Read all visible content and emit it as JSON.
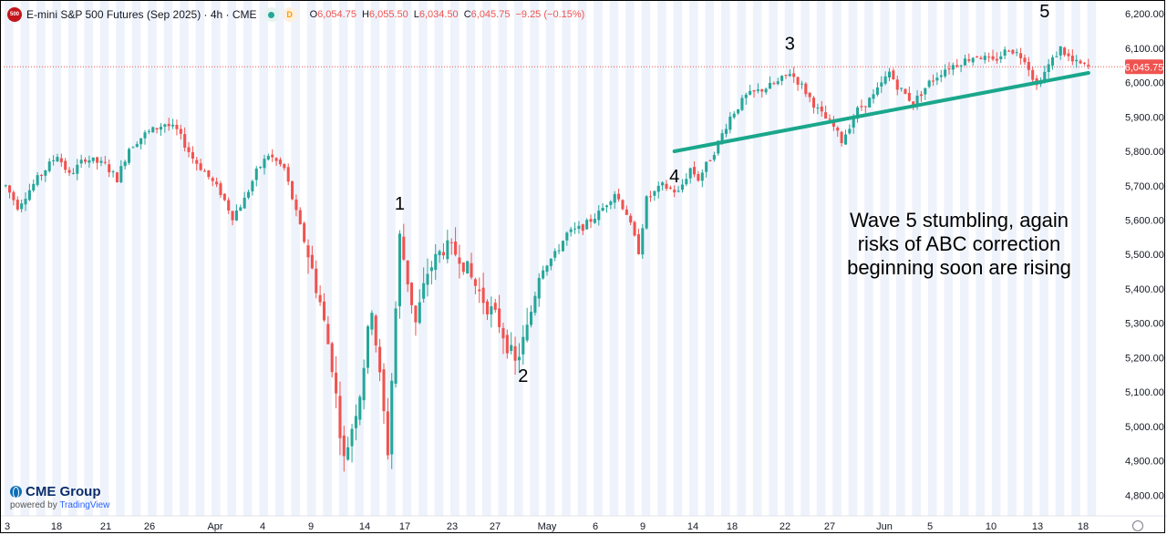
{
  "header": {
    "symbol_badge": "500",
    "title": "E-mini S&P 500 Futures (Sep 2025) · 4h · CME",
    "status_badge": "D",
    "ohlc": [
      {
        "key": "O",
        "value": "6,054.75"
      },
      {
        "key": "H",
        "value": "6,055.50"
      },
      {
        "key": "L",
        "value": "6,034.50"
      },
      {
        "key": "C",
        "value": "6,045.75"
      }
    ],
    "change": "−9.25 (−0.15%)"
  },
  "brand": {
    "name": "CME Group",
    "powered_prefix": "powered by",
    "powered_by": "TradingView"
  },
  "colors": {
    "up": "#26a69a",
    "down": "#ef5350",
    "trendline": "#1aa78c",
    "session_band": "#eef2fb",
    "price_tag": "#ef5350"
  },
  "chart_data": {
    "type": "candlestick",
    "y_ticks": [
      4800,
      4900,
      5000,
      5100,
      5200,
      5300,
      5400,
      5500,
      5600,
      5700,
      5800,
      5900,
      6000,
      6100,
      6200
    ],
    "y_tick_labels": [
      "4,800.00",
      "4,900.00",
      "5,000.00",
      "5,100.00",
      "5,200.00",
      "5,300.00",
      "5,400.00",
      "5,500.00",
      "5,600.00",
      "5,700.00",
      "5,800.00",
      "5,900.00",
      "6,000.00",
      "6,100.00",
      "6,200.00"
    ],
    "ylim": [
      4740,
      6240
    ],
    "x_tick_labels": [
      "3",
      "18",
      "21",
      "26",
      "Apr",
      "4",
      "9",
      "14",
      "17",
      "23",
      "27",
      "May",
      "6",
      "9",
      "14",
      "18",
      "22",
      "27",
      "Jun",
      "5",
      "10",
      "13",
      "18"
    ],
    "last_price": 6045.75,
    "last_price_label": "6,045.75",
    "path": [
      [
        0,
        5700
      ],
      [
        3,
        5640
      ],
      [
        8,
        5720
      ],
      [
        13,
        5790
      ],
      [
        16,
        5730
      ],
      [
        20,
        5780
      ],
      [
        25,
        5760
      ],
      [
        28,
        5720
      ],
      [
        31,
        5810
      ],
      [
        35,
        5850
      ],
      [
        40,
        5880
      ],
      [
        43,
        5860
      ],
      [
        47,
        5780
      ],
      [
        50,
        5740
      ],
      [
        54,
        5680
      ],
      [
        57,
        5610
      ],
      [
        60,
        5660
      ],
      [
        63,
        5740
      ],
      [
        66,
        5790
      ],
      [
        70,
        5750
      ],
      [
        73,
        5620
      ],
      [
        76,
        5500
      ],
      [
        79,
        5360
      ],
      [
        82,
        5180
      ],
      [
        85,
        4900
      ],
      [
        89,
        5100
      ],
      [
        92,
        5350
      ],
      [
        96,
        4930
      ],
      [
        99,
        5550
      ],
      [
        103,
        5300
      ],
      [
        106,
        5450
      ],
      [
        110,
        5520
      ],
      [
        114,
        5500
      ],
      [
        117,
        5430
      ],
      [
        120,
        5370
      ],
      [
        124,
        5300
      ],
      [
        128,
        5180
      ],
      [
        131,
        5280
      ],
      [
        134,
        5450
      ],
      [
        138,
        5500
      ],
      [
        141,
        5560
      ],
      [
        145,
        5580
      ],
      [
        149,
        5620
      ],
      [
        153,
        5680
      ],
      [
        156,
        5620
      ],
      [
        159,
        5510
      ],
      [
        161,
        5660
      ],
      [
        165,
        5700
      ],
      [
        169,
        5680
      ],
      [
        172,
        5750
      ],
      [
        174,
        5720
      ],
      [
        178,
        5800
      ],
      [
        182,
        5900
      ],
      [
        186,
        5960
      ],
      [
        190,
        5980
      ],
      [
        194,
        6000
      ],
      [
        197,
        6030
      ],
      [
        200,
        5990
      ],
      [
        204,
        5920
      ],
      [
        208,
        5870
      ],
      [
        210,
        5830
      ],
      [
        214,
        5920
      ],
      [
        218,
        5960
      ],
      [
        222,
        6030
      ],
      [
        224,
        5990
      ],
      [
        228,
        5940
      ],
      [
        232,
        6000
      ],
      [
        236,
        6040
      ],
      [
        240,
        6060
      ],
      [
        244,
        6080
      ],
      [
        248,
        6060
      ],
      [
        252,
        6100
      ],
      [
        256,
        6070
      ],
      [
        259,
        5990
      ],
      [
        262,
        6050
      ],
      [
        265,
        6100
      ],
      [
        268,
        6060
      ],
      [
        272,
        6045
      ]
    ],
    "trendline": {
      "start": [
        168,
        5800
      ],
      "end": [
        272,
        6028
      ]
    },
    "annotations": [
      {
        "text": "1",
        "bar": 99,
        "price": 5630
      },
      {
        "text": "2",
        "bar": 130,
        "price": 5130
      },
      {
        "text": "3",
        "bar": 197,
        "price": 6095
      },
      {
        "text": "4",
        "bar": 168,
        "price": 5710
      },
      {
        "text": "5",
        "bar": 261,
        "price": 6190
      }
    ],
    "note_lines": [
      "Wave 5 stumbling, again",
      "risks of ABC correction",
      "beginning soon are rising"
    ]
  }
}
